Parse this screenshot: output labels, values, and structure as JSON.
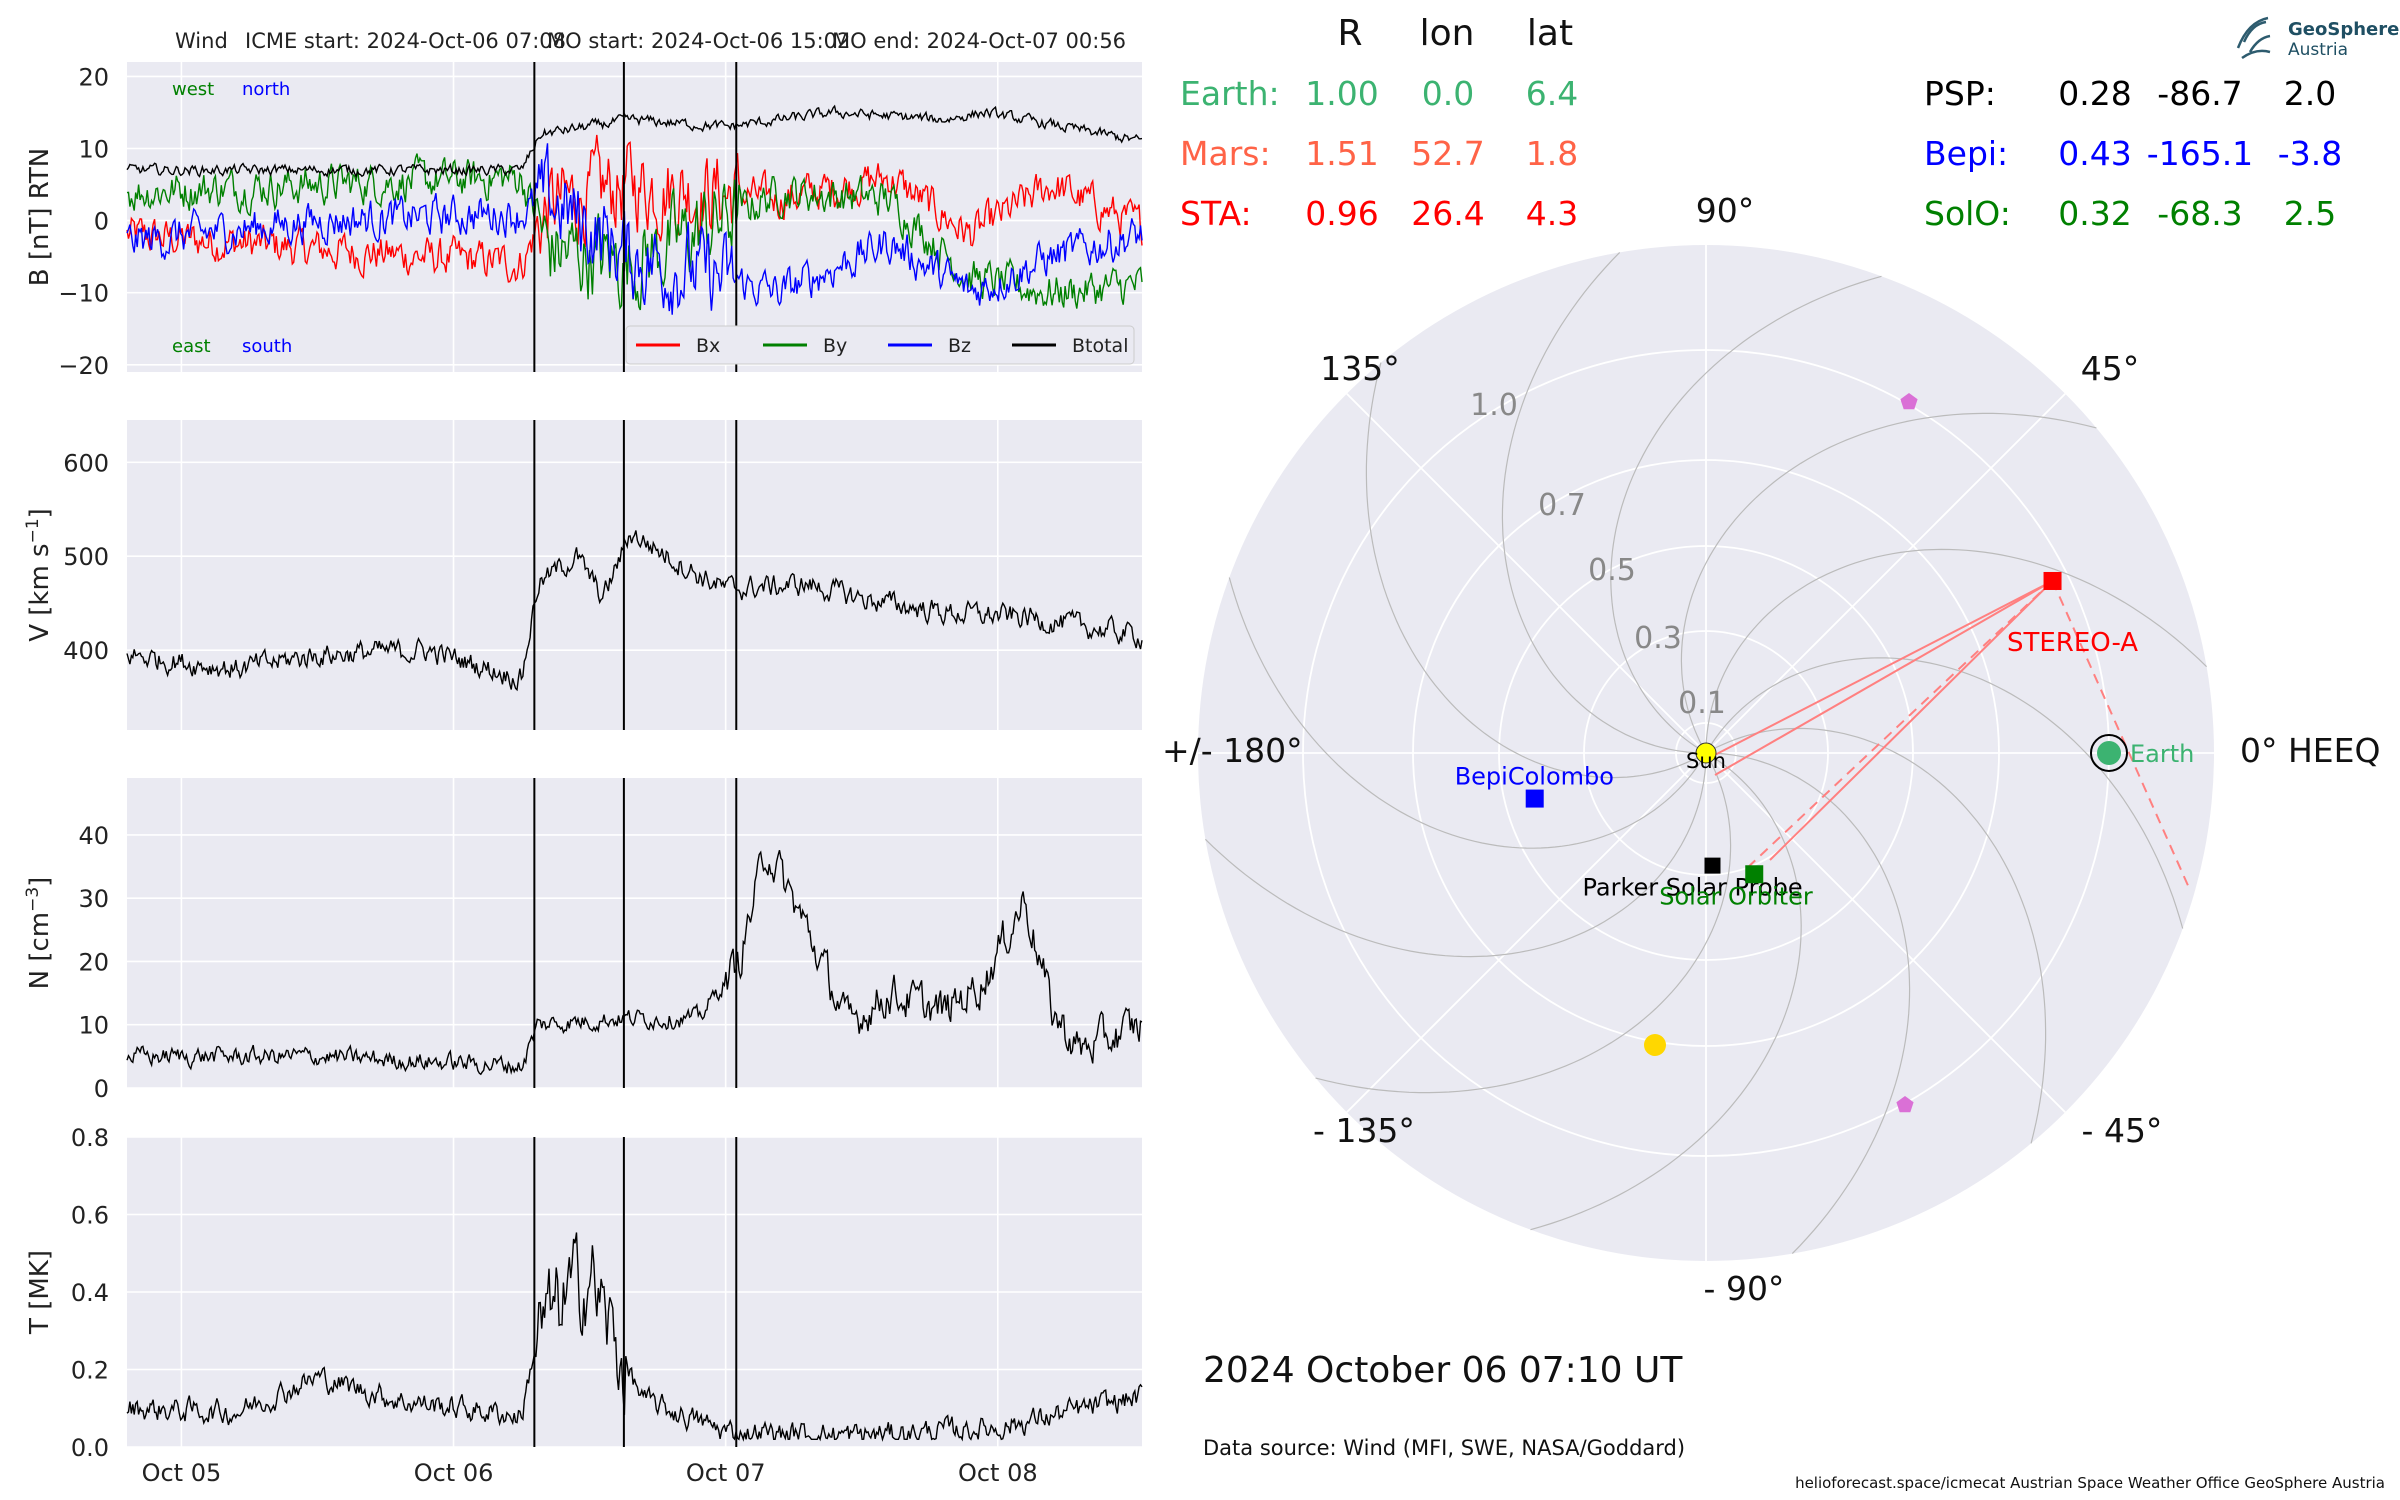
{
  "header": {
    "instrument": "Wind",
    "icme_start": "ICME start: 2024-Oct-06 07:08",
    "mo_start": "MO start: 2024-Oct-06 15:02",
    "mo_end": "MO end: 2024-Oct-07 00:56"
  },
  "chart_data": [
    {
      "type": "line",
      "ylabel": "B [nT] RTN",
      "ylim": [
        -21,
        22
      ],
      "yticks": [
        "20",
        "10",
        "0",
        "−10",
        "−20"
      ],
      "ytick_values": [
        20,
        10,
        0,
        -10,
        -20
      ],
      "annotations": {
        "west": "west",
        "north": "north",
        "east": "east",
        "south": "south"
      },
      "legend_position": "lower-right",
      "series": [
        {
          "name": "Bx",
          "color": "#ff0000"
        },
        {
          "name": "By",
          "color": "#008000"
        },
        {
          "name": "Bz",
          "color": "#0000ff"
        },
        {
          "name": "Btotal",
          "color": "#000000"
        }
      ],
      "x_days": [
        4.8,
        8.53
      ],
      "key_points": {
        "Btotal": [
          [
            4.8,
            7
          ],
          [
            6.25,
            7
          ],
          [
            6.32,
            12
          ],
          [
            6.65,
            14
          ],
          [
            7.0,
            13
          ],
          [
            7.4,
            15
          ],
          [
            7.8,
            14
          ],
          [
            7.95,
            15
          ],
          [
            8.53,
            11
          ]
        ],
        "Bx": [
          [
            4.8,
            -2
          ],
          [
            5.5,
            -4
          ],
          [
            6.25,
            -6
          ],
          [
            6.35,
            2
          ],
          [
            6.65,
            5
          ],
          [
            7.2,
            3
          ],
          [
            7.6,
            6
          ],
          [
            7.9,
            -2
          ],
          [
            8.2,
            5
          ],
          [
            8.53,
            -1
          ]
        ],
        "By": [
          [
            4.8,
            4
          ],
          [
            5.5,
            5
          ],
          [
            6.25,
            6
          ],
          [
            6.35,
            -4
          ],
          [
            6.65,
            -6
          ],
          [
            7.2,
            4
          ],
          [
            7.6,
            3
          ],
          [
            7.9,
            -8
          ],
          [
            8.2,
            -10
          ],
          [
            8.53,
            -9
          ]
        ],
        "Bz": [
          [
            4.8,
            -3
          ],
          [
            5.5,
            0
          ],
          [
            6.25,
            1
          ],
          [
            6.35,
            3
          ],
          [
            6.65,
            -5
          ],
          [
            7.2,
            -10
          ],
          [
            7.6,
            -3
          ],
          [
            7.9,
            -10
          ],
          [
            8.2,
            -5
          ],
          [
            8.53,
            -2
          ]
        ]
      }
    },
    {
      "type": "line",
      "ylabel_main": "V [km s",
      "ylabel_sup": "−1",
      "ylabel_end": "]",
      "ylim": [
        315,
        645
      ],
      "yticks": [
        "600",
        "500",
        "400"
      ],
      "ytick_values": [
        600,
        500,
        400
      ],
      "series": [
        {
          "name": "V",
          "color": "#000000"
        }
      ],
      "key_points": [
        [
          4.8,
          395
        ],
        [
          5.2,
          380
        ],
        [
          5.5,
          395
        ],
        [
          5.9,
          400
        ],
        [
          6.25,
          370
        ],
        [
          6.31,
          470
        ],
        [
          6.45,
          500
        ],
        [
          6.55,
          455
        ],
        [
          6.65,
          525
        ],
        [
          6.9,
          480
        ],
        [
          7.0,
          465
        ],
        [
          7.3,
          470
        ],
        [
          7.5,
          455
        ],
        [
          7.8,
          440
        ],
        [
          8.1,
          435
        ],
        [
          8.53,
          415
        ]
      ]
    },
    {
      "type": "line",
      "ylabel_main": "N [cm",
      "ylabel_sup": "−3",
      "ylabel_end": "]",
      "ylim": [
        0,
        49
      ],
      "yticks": [
        "40",
        "30",
        "20",
        "10",
        "0"
      ],
      "ytick_values": [
        40,
        30,
        20,
        10,
        0
      ],
      "series": [
        {
          "name": "N",
          "color": "#000000"
        }
      ],
      "key_points": [
        [
          4.8,
          5
        ],
        [
          5.5,
          5
        ],
        [
          6.0,
          4
        ],
        [
          6.25,
          3.5
        ],
        [
          6.31,
          10
        ],
        [
          6.6,
          11
        ],
        [
          6.9,
          11
        ],
        [
          7.05,
          20
        ],
        [
          7.15,
          38
        ],
        [
          7.3,
          25
        ],
        [
          7.45,
          10
        ],
        [
          7.6,
          15
        ],
        [
          7.8,
          12
        ],
        [
          7.95,
          17
        ],
        [
          8.1,
          30
        ],
        [
          8.2,
          12
        ],
        [
          8.3,
          6
        ],
        [
          8.53,
          10
        ]
      ]
    },
    {
      "type": "line",
      "ylabel": "T [MK]",
      "ylim": [
        0,
        0.8
      ],
      "yticks": [
        "0.8",
        "0.6",
        "0.4",
        "0.2",
        "0.0"
      ],
      "ytick_values": [
        0.8,
        0.6,
        0.4,
        0.2,
        0.0
      ],
      "series": [
        {
          "name": "T",
          "color": "#000000"
        }
      ],
      "key_points": [
        [
          4.8,
          0.1
        ],
        [
          5.2,
          0.09
        ],
        [
          5.5,
          0.18
        ],
        [
          5.8,
          0.12
        ],
        [
          6.25,
          0.08
        ],
        [
          6.31,
          0.3
        ],
        [
          6.5,
          0.45
        ],
        [
          6.6,
          0.25
        ],
        [
          6.7,
          0.12
        ],
        [
          7.0,
          0.04
        ],
        [
          7.5,
          0.03
        ],
        [
          8.0,
          0.05
        ],
        [
          8.53,
          0.13
        ]
      ]
    }
  ],
  "time_axis": {
    "ticks": [
      {
        "label": "Oct 05",
        "day": 5.0
      },
      {
        "label": "Oct 06",
        "day": 6.0
      },
      {
        "label": "Oct 07",
        "day": 7.0
      },
      {
        "label": "Oct 08",
        "day": 8.0
      }
    ],
    "event_lines_days": [
      6.297,
      6.626,
      7.039
    ]
  },
  "polar": {
    "type": "polar",
    "r_tick_labels": [
      "1.0",
      "0.7",
      "0.5",
      "0.3",
      "0.1"
    ],
    "angle_labels": {
      "a0": "0° HEEQ",
      "a45": "45°",
      "a90": "90°",
      "a135": "135°",
      "a180": "+/- 180°",
      "am135": "- 135°",
      "am90": "- 90°",
      "am45": "- 45°"
    },
    "bodies": [
      {
        "name": "Earth",
        "label": "Earth",
        "lon": 0.0,
        "r": 1.0,
        "color": "#3cb371"
      },
      {
        "name": "STEREO-A",
        "label": "STEREO-A",
        "lon": 26.4,
        "r": 0.96,
        "color": "#ff0000"
      },
      {
        "name": "BepiColombo",
        "label": "BepiColombo",
        "lon": -165.1,
        "r": 0.43,
        "color": "#0000ff"
      },
      {
        "name": "Parker Solar Probe",
        "label": "Parker Solar Probe",
        "lon": -86.7,
        "r": 0.28,
        "color": "#000000"
      },
      {
        "name": "Solar Orbiter",
        "label": "Solar Orbiter",
        "lon": -68.3,
        "r": 0.32,
        "color": "#008000"
      }
    ],
    "sun_label": "Sun"
  },
  "positions_table": {
    "headers": [
      "R",
      "lon",
      "lat"
    ],
    "left_rows": [
      {
        "label": "Earth:",
        "R": "1.00",
        "lon": "0.0",
        "lat": "6.4",
        "color": "#3cb371"
      },
      {
        "label": "Mars:",
        "R": "1.51",
        "lon": "52.7",
        "lat": "1.8",
        "color": "#ff6347"
      },
      {
        "label": "STA:",
        "R": "0.96",
        "lon": "26.4",
        "lat": "4.3",
        "color": "#ff0000"
      }
    ],
    "right_rows": [
      {
        "label": "PSP:",
        "R": "0.28",
        "lon": "-86.7",
        "lat": "2.0",
        "color": "#000000"
      },
      {
        "label": "Bepi:",
        "R": "0.43",
        "lon": "-165.1",
        "lat": "-3.8",
        "color": "#0000ff"
      },
      {
        "label": "SolO:",
        "R": "0.32",
        "lon": "-68.3",
        "lat": "2.5",
        "color": "#008000"
      }
    ]
  },
  "datetime": "2024 October 06  07:10 UT",
  "data_source": "Data source: Wind (MFI, SWE, NASA/Goddard)",
  "footer": "helioforecast.space/icmecat   Austrian Space Weather Office   GeoSphere Austria",
  "logo": {
    "line1": "GeoSphere",
    "line2": "Austria"
  }
}
